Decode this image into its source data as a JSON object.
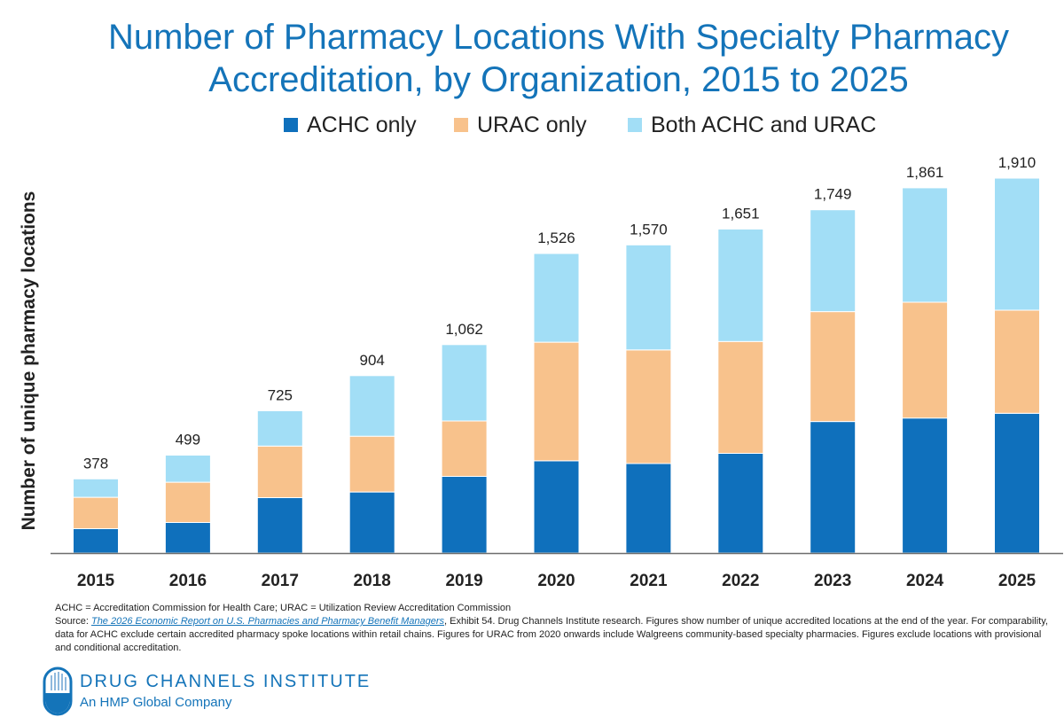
{
  "colors": {
    "title": "#1474b9",
    "achc": "#0f70bc",
    "urac": "#f8c28c",
    "both": "#a2def6",
    "axis": "#6e6e6e",
    "link": "#1474b9"
  },
  "chart_data": {
    "type": "bar",
    "stacked": true,
    "title": "Number of Pharmacy Locations With Specialty Pharmacy Accreditation, by Organization, 2015 to 2025",
    "xlabel": "",
    "ylabel": "Number of unique pharmacy locations",
    "ylim": [
      0,
      1910
    ],
    "grid": false,
    "legend_position": "top",
    "categories": [
      "2015",
      "2016",
      "2017",
      "2018",
      "2019",
      "2020",
      "2021",
      "2022",
      "2023",
      "2024",
      "2025"
    ],
    "series": [
      {
        "name": "ACHC only",
        "values": [
          124,
          156,
          282,
          311,
          391,
          470,
          456,
          508,
          670,
          688,
          712
        ]
      },
      {
        "name": "URAC only",
        "values": [
          160,
          205,
          263,
          284,
          282,
          604,
          579,
          570,
          560,
          590,
          525
        ]
      },
      {
        "name": "Both ACHC and URAC",
        "values": [
          94,
          138,
          180,
          309,
          389,
          452,
          535,
          573,
          519,
          583,
          673
        ]
      }
    ],
    "totals": [
      378,
      499,
      725,
      904,
      1062,
      1526,
      1570,
      1651,
      1749,
      1861,
      1910
    ],
    "total_labels": [
      "378",
      "499",
      "725",
      "904",
      "1,062",
      "1,526",
      "1,570",
      "1,651",
      "1,749",
      "1,861",
      "1,910"
    ]
  },
  "notes": {
    "line1": "ACHC = Accreditation Commission for Health Care; URAC = Utilization Review Accreditation Commission",
    "source_prefix": "Source: ",
    "source_link": "The 2026 Economic Report on U.S. Pharmacies and Pharmacy Benefit Managers",
    "source_rest": ", Exhibit 54. Drug Channels Institute research. Figures show number of unique accredited locations at the end of the year. For comparability, data for ACHC exclude certain accredited pharmacy spoke locations within retail chains. Figures for URAC from 2020 onwards include Walgreens community-based specialty pharmacies. Figures exclude locations with provisional and conditional accreditation."
  },
  "logo": {
    "name": "DRUG CHANNELS INSTITUTE",
    "tagline": "An HMP Global Company"
  }
}
